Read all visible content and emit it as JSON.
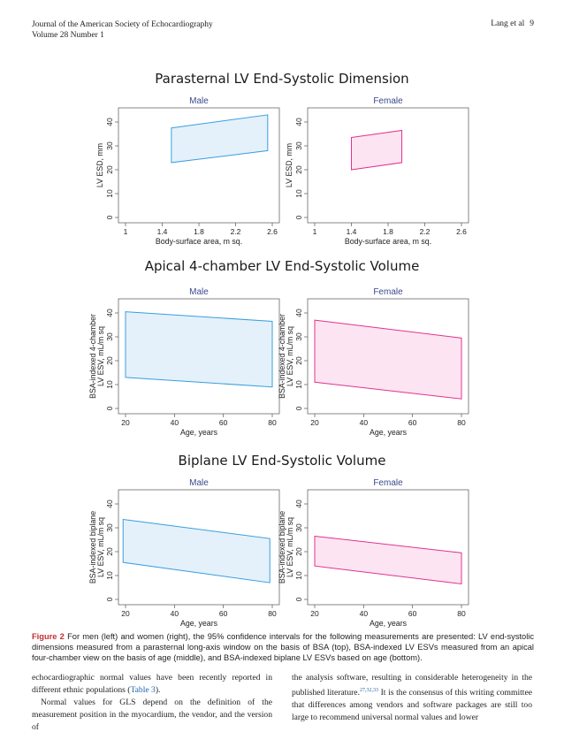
{
  "header": {
    "journal": "Journal of the American Society of Echocardiography",
    "volume": "Volume 28 Number 1",
    "author": "Lang et al",
    "page": "9"
  },
  "sections": [
    {
      "title": "Parasternal LV End-Systolic Dimension",
      "charts": [
        {
          "panel_title": "Male",
          "ylabel": [
            "LV ESD, mm"
          ],
          "xlabel": "Body-surface area, m sq.",
          "xticks": [
            "1",
            "1.4",
            "1.8",
            "2.2",
            "2.6"
          ],
          "yticks": [
            "0",
            "10",
            "20",
            "30",
            "40"
          ]
        },
        {
          "panel_title": "Female",
          "ylabel": [
            "LV ESD, mm"
          ],
          "xlabel": "Body-surface area, m sq.",
          "xticks": [
            "1",
            "1.4",
            "1.8",
            "2.2",
            "2.6"
          ],
          "yticks": [
            "0",
            "10",
            "20",
            "30",
            "40"
          ]
        }
      ]
    },
    {
      "title": "Apical 4-chamber LV End-Systolic Volume",
      "charts": [
        {
          "panel_title": "Male",
          "ylabel": [
            "BSA-indexed 4-chamber",
            "LV ESV, mL/m sq"
          ],
          "xlabel": "Age, years",
          "xticks": [
            "20",
            "40",
            "60",
            "80"
          ],
          "yticks": [
            "0",
            "10",
            "20",
            "30",
            "40"
          ]
        },
        {
          "panel_title": "Female",
          "ylabel": [
            "BSA-indexed 4-chamber",
            "LV ESV, mL/m sq"
          ],
          "xlabel": "Age, years",
          "xticks": [
            "20",
            "40",
            "60",
            "80"
          ],
          "yticks": [
            "0",
            "10",
            "20",
            "30",
            "40"
          ]
        }
      ]
    },
    {
      "title": "Biplane LV End-Systolic Volume",
      "charts": [
        {
          "panel_title": "Male",
          "ylabel": [
            "BSA-indexed biplane",
            "LV ESV, mL/m sq"
          ],
          "xlabel": "Age, years",
          "xticks": [
            "20",
            "40",
            "60",
            "80"
          ],
          "yticks": [
            "0",
            "10",
            "20",
            "30",
            "40"
          ]
        },
        {
          "panel_title": "Female",
          "ylabel": [
            "BSA-indexed biplane",
            "LV ESV, mL/m sq"
          ],
          "xlabel": "Age, years",
          "xticks": [
            "20",
            "40",
            "60",
            "80"
          ],
          "yticks": [
            "0",
            "10",
            "20",
            "30",
            "40"
          ]
        }
      ]
    }
  ],
  "chart_data": [
    {
      "type": "area",
      "panel": "Parasternal LV ESD - Male",
      "xlim": [
        1,
        2.6
      ],
      "ylim": [
        0,
        40
      ],
      "xticks": [
        1,
        1.4,
        1.8,
        2.2,
        2.6
      ],
      "yticks": [
        0,
        10,
        20,
        30,
        40
      ],
      "x": [
        1.5,
        2.55
      ],
      "upper": [
        37.5,
        43.0
      ],
      "lower": [
        23.0,
        28.0
      ]
    },
    {
      "type": "area",
      "panel": "Parasternal LV ESD - Female",
      "xlim": [
        1,
        2.6
      ],
      "ylim": [
        0,
        40
      ],
      "xticks": [
        1,
        1.4,
        1.8,
        2.2,
        2.6
      ],
      "yticks": [
        0,
        10,
        20,
        30,
        40
      ],
      "x": [
        1.4,
        1.95
      ],
      "upper": [
        33.5,
        36.5
      ],
      "lower": [
        20.0,
        23.0
      ]
    },
    {
      "type": "area",
      "panel": "Apical 4-chamber LV ESV - Male",
      "xlim": [
        20,
        80
      ],
      "ylim": [
        0,
        40
      ],
      "xticks": [
        20,
        40,
        60,
        80
      ],
      "yticks": [
        0,
        10,
        20,
        30,
        40
      ],
      "x": [
        20,
        80
      ],
      "upper": [
        40.5,
        36.5
      ],
      "lower": [
        13.0,
        9.0
      ]
    },
    {
      "type": "area",
      "panel": "Apical 4-chamber LV ESV - Female",
      "xlim": [
        20,
        80
      ],
      "ylim": [
        0,
        40
      ],
      "xticks": [
        20,
        40,
        60,
        80
      ],
      "yticks": [
        0,
        10,
        20,
        30,
        40
      ],
      "x": [
        20,
        80
      ],
      "upper": [
        37.0,
        29.5
      ],
      "lower": [
        11.0,
        4.0
      ]
    },
    {
      "type": "area",
      "panel": "Biplane LV ESV - Male",
      "xlim": [
        20,
        80
      ],
      "ylim": [
        0,
        40
      ],
      "xticks": [
        20,
        40,
        60,
        80
      ],
      "yticks": [
        0,
        10,
        20,
        30,
        40
      ],
      "x": [
        19,
        79
      ],
      "upper": [
        33.5,
        25.5
      ],
      "lower": [
        15.5,
        7.0
      ]
    },
    {
      "type": "area",
      "panel": "Biplane LV ESV - Female",
      "xlim": [
        20,
        80
      ],
      "ylim": [
        0,
        40
      ],
      "xticks": [
        20,
        40,
        60,
        80
      ],
      "yticks": [
        0,
        10,
        20,
        30,
        40
      ],
      "x": [
        20,
        80
      ],
      "upper": [
        26.5,
        19.5
      ],
      "lower": [
        14.0,
        6.5
      ]
    }
  ],
  "colors": {
    "male_stroke": "#3a9ee0",
    "male_fill": "#e4f1fb",
    "female_stroke": "#e0338f",
    "female_fill": "#fde4f2",
    "panel_title": "#3a4a8c",
    "caption_label": "#c22f2f"
  },
  "caption": {
    "label": "Figure 2",
    "text": " For men (left) and women (right), the 95% confidence intervals for the following measurements are presented: LV end-systolic dimensions measured from a parasternal long-axis window on the basis of BSA (top), BSA-indexed LV ESVs measured from an apical four-chamber view on the basis of age (middle), and BSA-indexed biplane LV ESVs based on age (bottom)."
  },
  "body": {
    "left_p1_a": "echocardiographic normal values have been recently reported in different ethnic populations (",
    "left_p1_link": "Table 3",
    "left_p1_b": ").",
    "left_p2": "Normal values for GLS depend on the definition of the measurement position in the myocardium, the vendor, and the version of",
    "right_p1_a": "the analysis software, resulting in considerable heterogeneity in the published literature.",
    "right_p1_ref": "27,32,33",
    "right_p1_b": " It is the consensus of this writing committee that differences among vendors and software packages are still too large to recommend universal normal values and lower"
  }
}
